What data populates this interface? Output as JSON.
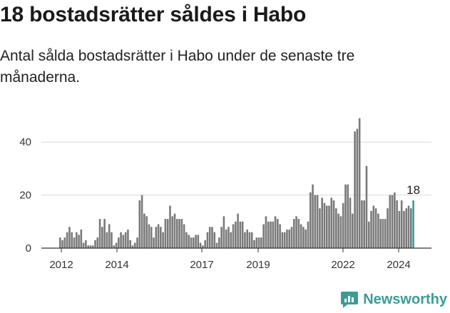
{
  "title": "18 bostadsrätter såldes i Habo",
  "subtitle": "Antal sålda bostadsrätter i Habo under de senaste tre månaderna.",
  "brand": "Newsworthy",
  "colors": {
    "bar": "#7a7a7a",
    "highlight": "#3b9c96",
    "grid": "#d9d9d9",
    "axis": "#333333"
  },
  "chart_data": {
    "type": "bar",
    "ylim": [
      0,
      50
    ],
    "grid": true,
    "y_ticks": [
      "0",
      "20",
      "40"
    ],
    "x_ticks": [
      "2012",
      "2014",
      "2017",
      "2019",
      "2022",
      "2024"
    ],
    "highlight_label": "18",
    "values": [
      4,
      3,
      4,
      6,
      8,
      6,
      4,
      6,
      5,
      7,
      2,
      3,
      1,
      1,
      1,
      3,
      4,
      11,
      8,
      11,
      6,
      9,
      6,
      1,
      2,
      4,
      6,
      5,
      6,
      7,
      3,
      1,
      2,
      4,
      18,
      20,
      13,
      12,
      9,
      8,
      4,
      8,
      9,
      8,
      6,
      11,
      11,
      16,
      12,
      13,
      11,
      11,
      11,
      9,
      6,
      5,
      4,
      4,
      5,
      5,
      2,
      1,
      3,
      6,
      8,
      8,
      6,
      2,
      4,
      8,
      12,
      7,
      8,
      6,
      9,
      10,
      13,
      10,
      10,
      6,
      7,
      6,
      6,
      3,
      4,
      4,
      4,
      9,
      12,
      10,
      10,
      10,
      12,
      11,
      9,
      6,
      6,
      7,
      7,
      8,
      11,
      12,
      11,
      9,
      8,
      7,
      10,
      21,
      24,
      20,
      20,
      15,
      19,
      17,
      16,
      16,
      19,
      18,
      15,
      13,
      12,
      17,
      24,
      24,
      19,
      13,
      44,
      45,
      49,
      18,
      18,
      31,
      10,
      14,
      16,
      15,
      13,
      11,
      11,
      11,
      15,
      20,
      20,
      21,
      18,
      14,
      18,
      14,
      15,
      16,
      15,
      18
    ]
  }
}
